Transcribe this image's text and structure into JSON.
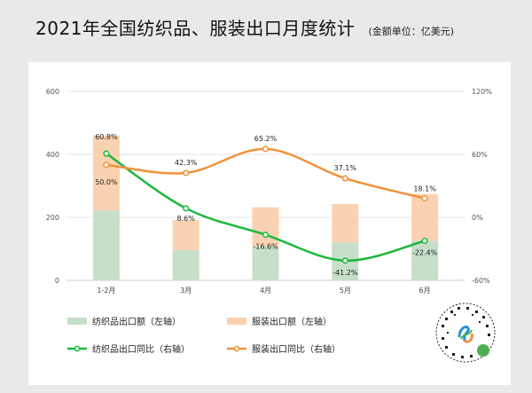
{
  "header": {
    "title": "2021年全国纺织品、服装出口月度统计",
    "unit": "(金额单位：亿美元)"
  },
  "chart_data": {
    "type": "bar",
    "stacked": true,
    "title": "2021年全国纺织品、服装出口月度统计",
    "categories": [
      "1-2月",
      "3月",
      "4月",
      "5月",
      "6月"
    ],
    "y_left": {
      "min": 0,
      "max": 600,
      "ticks": [
        "0",
        "200",
        "400",
        "600"
      ]
    },
    "y_right": {
      "min": -60,
      "max": 120,
      "ticks": [
        "-60%",
        "0%",
        "60%",
        "120%"
      ]
    },
    "series": [
      {
        "name": "纺织品出口额（左轴）",
        "kind": "bar",
        "axis": "left",
        "color": "#c5dfc9",
        "values": [
          222,
          96,
          108,
          120,
          126
        ]
      },
      {
        "name": "服装出口额（左轴）",
        "kind": "bar",
        "axis": "left",
        "color": "#fbd2b1",
        "values": [
          238,
          95,
          124,
          122,
          148
        ]
      },
      {
        "name": "纺织品出口同比（右轴）",
        "kind": "line",
        "axis": "right",
        "color": "#1db83c",
        "values": [
          60.8,
          8.6,
          -16.6,
          -41.2,
          -22.4
        ],
        "labels": [
          "60.8%",
          "8.6%",
          "-16.6%",
          "-41.2%",
          "-22.4%"
        ]
      },
      {
        "name": "服装出口同比（右轴）",
        "kind": "line",
        "axis": "right",
        "color": "#f0923b",
        "values": [
          50.0,
          42.3,
          65.2,
          37.1,
          18.1
        ],
        "labels": [
          "50.0%",
          "42.3%",
          "65.2%",
          "37.1%",
          "18.1%"
        ]
      }
    ]
  }
}
